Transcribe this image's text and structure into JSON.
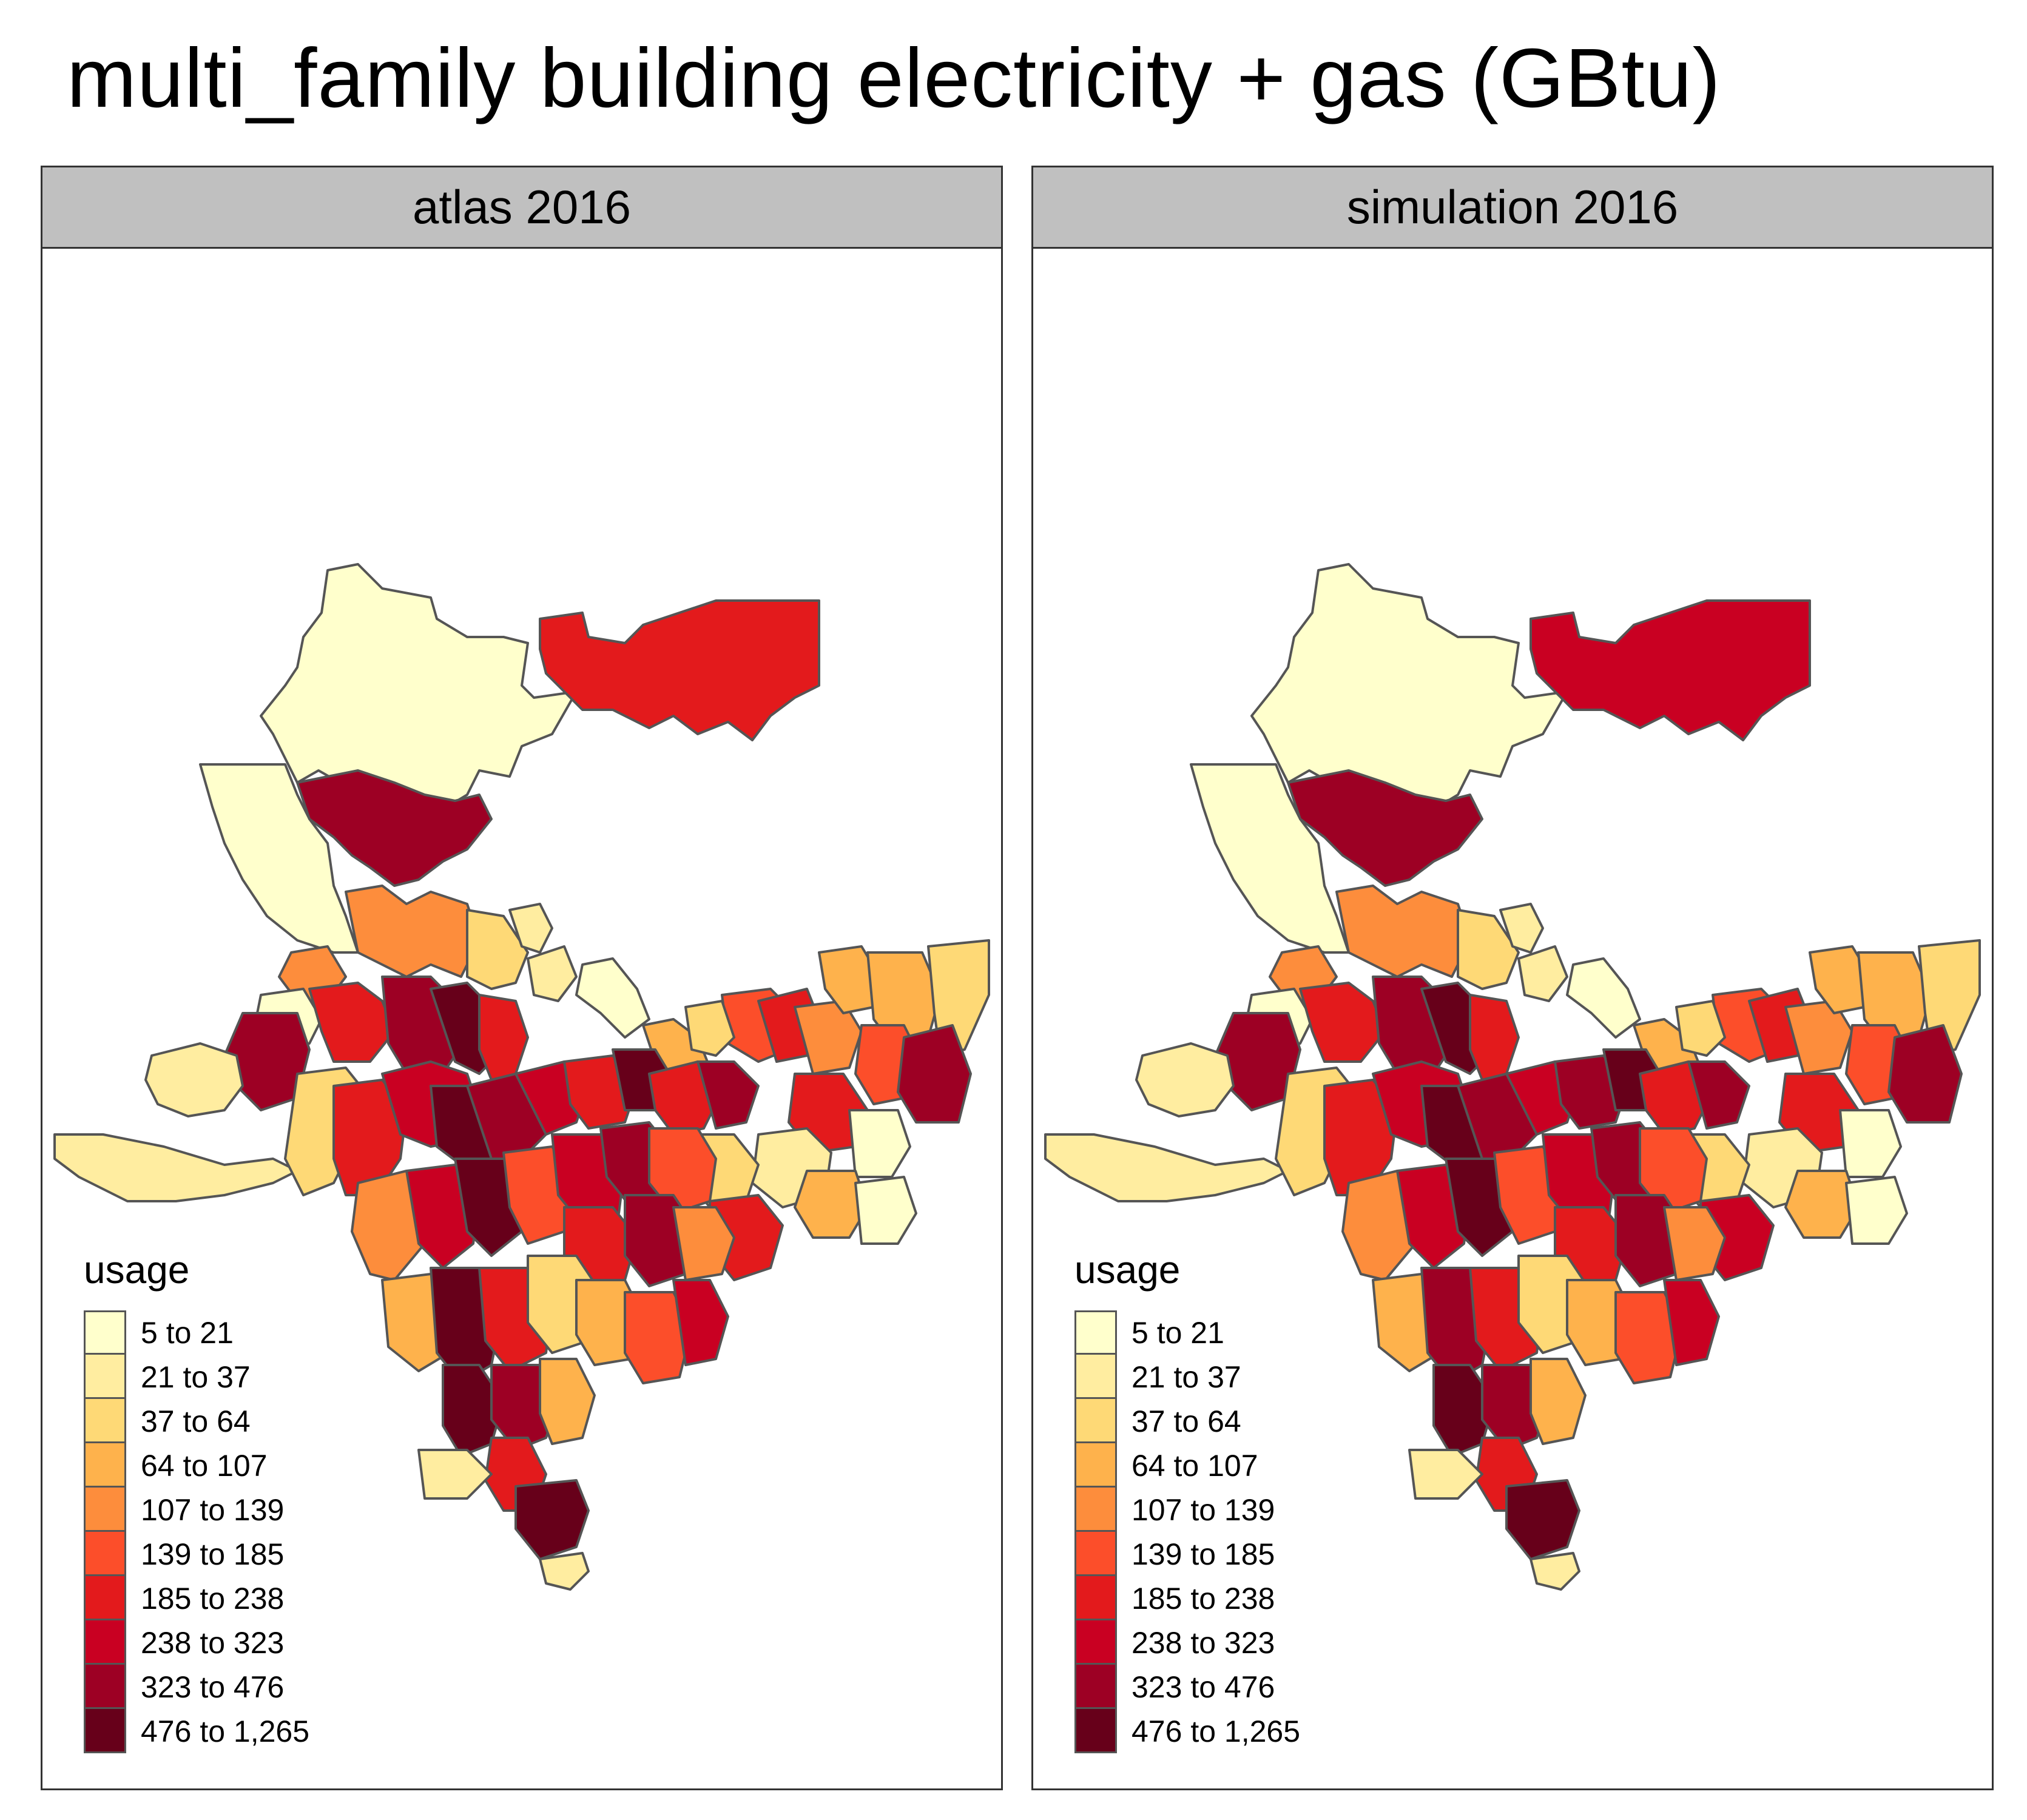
{
  "title": "multi_family building electricity + gas (GBtu)",
  "legend": {
    "title": "usage",
    "items": [
      {
        "label": "5 to 21",
        "color": "#ffffcc"
      },
      {
        "label": "21 to 37",
        "color": "#ffeda0"
      },
      {
        "label": "37 to 64",
        "color": "#fed976"
      },
      {
        "label": "64 to 107",
        "color": "#feb24c"
      },
      {
        "label": "107 to 139",
        "color": "#fd8d3c"
      },
      {
        "label": "139 to 185",
        "color": "#fc4e2a"
      },
      {
        "label": "185 to 238",
        "color": "#e31a1c"
      },
      {
        "label": "238 to 323",
        "color": "#c90022"
      },
      {
        "label": "323 to 476",
        "color": "#9d0024"
      },
      {
        "label": "476 to 1,265",
        "color": "#67001a"
      }
    ]
  },
  "panels": [
    {
      "label": "atlas 2016"
    },
    {
      "label": "simulation 2016"
    }
  ]
}
